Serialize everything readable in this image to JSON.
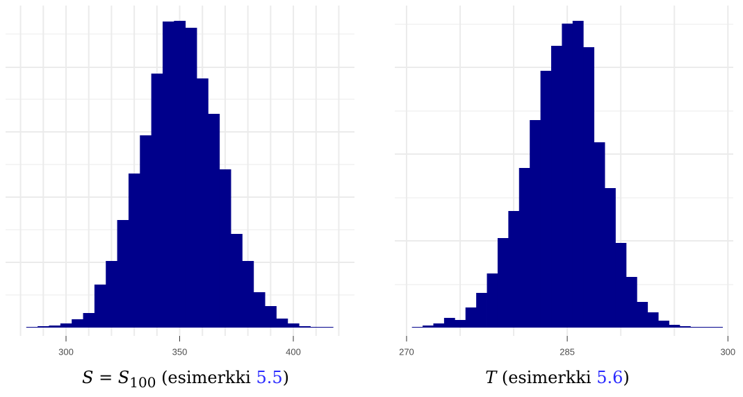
{
  "chart_data": [
    {
      "type": "histogram",
      "bins": [
        282.5,
        287.5,
        292.5,
        297.5,
        302.5,
        307.5,
        312.5,
        317.5,
        322.5,
        327.5,
        332.5,
        337.5,
        342.5,
        347.5,
        352.5,
        357.5,
        362.5,
        367.5,
        372.5,
        377.5,
        382.5,
        387.5,
        392.5,
        397.5,
        402.5,
        407.5,
        412.5,
        417.5
      ],
      "counts": [
        1,
        2,
        3,
        6,
        12,
        21,
        62,
        96,
        155,
        222,
        277,
        366,
        441,
        442,
        432,
        359,
        308,
        228,
        135,
        96,
        51,
        31,
        13,
        6,
        2,
        1,
        1
      ],
      "color": "#00008b",
      "xlim": [
        273.4,
        426.9
      ],
      "xticks": [
        300,
        350,
        400
      ],
      "xgrid": [
        280,
        290,
        300,
        310,
        320,
        330,
        340,
        350,
        360,
        370,
        380,
        390,
        400,
        410,
        420
      ],
      "ylim": [
        0,
        464
      ],
      "ygrid": [
        47,
        94,
        141,
        188,
        235,
        282,
        329,
        375,
        423
      ],
      "caption": {
        "math": "S = S",
        "sub": "100",
        "text": " (esimerkki ",
        "ref": "5.5",
        "close": ")"
      }
    },
    {
      "type": "histogram",
      "bins": [
        270.5,
        271.5,
        272.5,
        273.5,
        274.5,
        275.5,
        276.5,
        277.5,
        278.5,
        279.5,
        280.5,
        281.5,
        282.5,
        283.5,
        284.5,
        285.5,
        286.5,
        287.5,
        288.5,
        289.5,
        290.5,
        291.5,
        292.5,
        293.5,
        294.5,
        295.5,
        296.5,
        297.5,
        298.5,
        299.5
      ],
      "counts": [
        1,
        3,
        6,
        14,
        11,
        29,
        50,
        78,
        129,
        168,
        230,
        299,
        370,
        406,
        438,
        442,
        404,
        267,
        201,
        122,
        73,
        37,
        22,
        10,
        4,
        2,
        1,
        1,
        1
      ],
      "color": "#00008b",
      "xlim": [
        268.9,
        300.5
      ],
      "xticks": [
        270,
        285,
        300
      ],
      "xgrid": [
        270,
        275,
        280,
        285,
        290,
        295,
        300
      ],
      "ylim": [
        0,
        464
      ],
      "ygrid": [
        62,
        125,
        187,
        250,
        312,
        375,
        437
      ],
      "caption": {
        "math": "T",
        "text": " (esimerkki ",
        "ref": "5.6",
        "close": ")"
      }
    }
  ]
}
